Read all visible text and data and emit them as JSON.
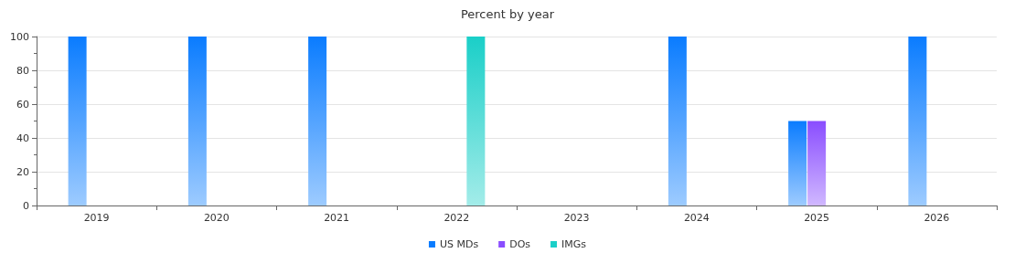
{
  "chart_data": {
    "type": "bar",
    "title": "Percent by year",
    "categories": [
      "2019",
      "2020",
      "2021",
      "2022",
      "2023",
      "2024",
      "2025",
      "2026"
    ],
    "series": [
      {
        "name": "US MDs",
        "color": "#0a7cff",
        "values": [
          100,
          100,
          100,
          0,
          0,
          100,
          50,
          100
        ]
      },
      {
        "name": "DOs",
        "color": "#8a4dff",
        "values": [
          0,
          0,
          0,
          0,
          0,
          0,
          50,
          0
        ]
      },
      {
        "name": "IMGs",
        "color": "#1acfc8",
        "values": [
          0,
          0,
          0,
          100,
          0,
          0,
          0,
          0
        ]
      }
    ],
    "ylim": [
      0,
      100
    ],
    "yticks": [
      0,
      20,
      40,
      60,
      80,
      100
    ],
    "grid": "y",
    "legend": "bottom"
  }
}
